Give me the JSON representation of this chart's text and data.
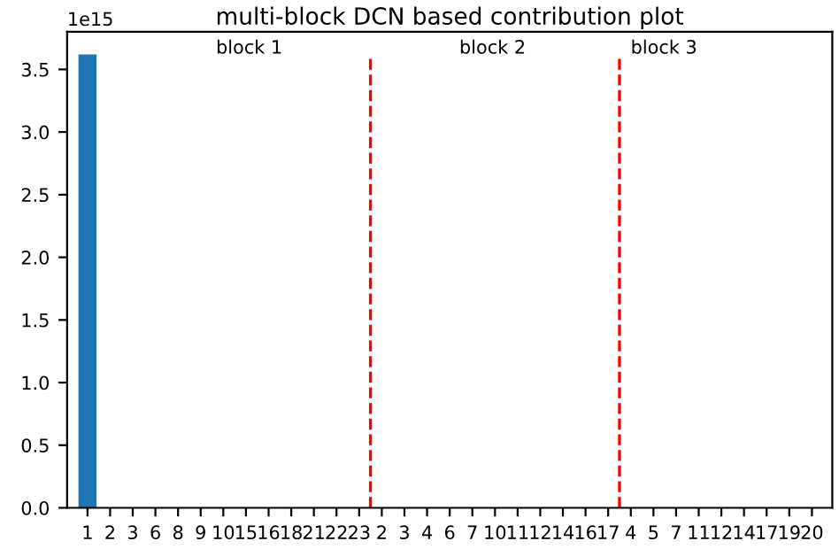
{
  "chart_data": {
    "type": "bar",
    "title": "multi-block DCN based contribution plot",
    "categories": [
      "1",
      "2",
      "3",
      "6",
      "8",
      "9",
      "10",
      "15",
      "16",
      "18",
      "21",
      "22",
      "23",
      "2",
      "3",
      "4",
      "6",
      "7",
      "10",
      "11",
      "12",
      "14",
      "16",
      "17",
      "4",
      "5",
      "7",
      "11",
      "12",
      "14",
      "17",
      "19",
      "20"
    ],
    "values": [
      3.62,
      0,
      0,
      0,
      0,
      0,
      0,
      0,
      0,
      0,
      0,
      0,
      0,
      0,
      0,
      0,
      0,
      0,
      0,
      0,
      0,
      0,
      0,
      0,
      0,
      0,
      0,
      0,
      0,
      0,
      0,
      0,
      0
    ],
    "color": "#1f77b4",
    "ylim": [
      0,
      3.8
    ],
    "yticks": [
      {
        "value": 0,
        "label": "0.0"
      },
      0.5,
      {
        "value": 1,
        "label": "1.0"
      },
      1.5,
      {
        "value": 2,
        "label": "2.0"
      },
      2.5,
      {
        "value": 3,
        "label": "3.0"
      },
      3.5
    ],
    "annotations": [
      "1e15",
      "block 1",
      "block 2",
      "block 3"
    ],
    "grid": false,
    "legend": false
  }
}
